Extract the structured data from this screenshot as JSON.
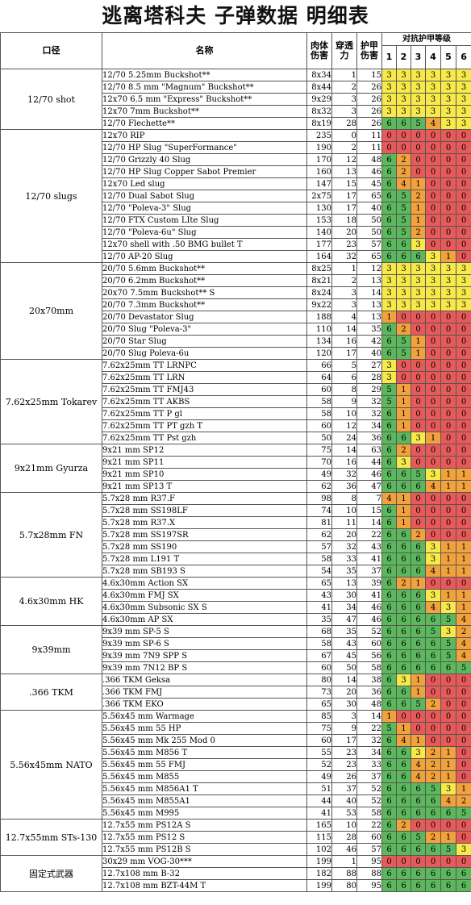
{
  "title": "逃离塔科夫 子弹数据 明细表",
  "headers": {
    "caliber": "口径",
    "name": "名称",
    "flesh": "肉体伤害",
    "pen": "穿透力",
    "armor": "护甲伤害",
    "vs_armor": "对抗护甲等级",
    "levels": [
      "1",
      "2",
      "3",
      "4",
      "5",
      "6"
    ]
  },
  "colors": {
    "g": "#5cb85c",
    "y": "#f7e94a",
    "o": "#f2a23c",
    "r": "#e85a5a"
  },
  "groups": [
    {
      "caliber": "12/70 shot",
      "rows": [
        {
          "name": "12/70 5.25mm Buckshot**",
          "dmg": "8x34",
          "pen": "1",
          "ad": "15",
          "a": [
            "3",
            "3",
            "3",
            "3",
            "3",
            "3"
          ]
        },
        {
          "name": "12/70 8.5 mm \"Magnum\" Buckshot**",
          "dmg": "8x44",
          "pen": "2",
          "ad": "26",
          "a": [
            "3",
            "3",
            "3",
            "3",
            "3",
            "3"
          ]
        },
        {
          "name": "12x70 6.5 mm \"Express\" Buckshot**",
          "dmg": "9x29",
          "pen": "3",
          "ad": "26",
          "a": [
            "3",
            "3",
            "3",
            "3",
            "3",
            "3"
          ]
        },
        {
          "name": "12x70 7mm Buckshot**",
          "dmg": "8x32",
          "pen": "3",
          "ad": "26",
          "a": [
            "3",
            "3",
            "3",
            "3",
            "3",
            "3"
          ]
        },
        {
          "name": "12/70 Flechette**",
          "dmg": "8x19",
          "pen": "28",
          "ad": "26",
          "a": [
            "6",
            "6",
            "5",
            "4",
            "3",
            "3"
          ]
        }
      ]
    },
    {
      "caliber": "12/70 slugs",
      "rows": [
        {
          "name": "12x70 RIP",
          "dmg": "235",
          "pen": "0",
          "ad": "11",
          "a": [
            "0",
            "0",
            "0",
            "0",
            "0",
            "0"
          ]
        },
        {
          "name": "12/70 HP Slug \"SuperFormance\"",
          "dmg": "190",
          "pen": "2",
          "ad": "11",
          "a": [
            "0",
            "0",
            "0",
            "0",
            "0",
            "0"
          ]
        },
        {
          "name": "12/70 Grizzly 40 Slug",
          "dmg": "170",
          "pen": "12",
          "ad": "48",
          "a": [
            "6",
            "2",
            "0",
            "0",
            "0",
            "0"
          ]
        },
        {
          "name": "12/70 HP Slug Copper Sabot Premier",
          "dmg": "160",
          "pen": "13",
          "ad": "46",
          "a": [
            "6",
            "2",
            "0",
            "0",
            "0",
            "0"
          ]
        },
        {
          "name": "12x70 Led slug",
          "dmg": "147",
          "pen": "15",
          "ad": "45",
          "a": [
            "6",
            "4",
            "1",
            "0",
            "0",
            "0"
          ]
        },
        {
          "name": "12/70 Dual Sabot Slug",
          "dmg": "2x75",
          "pen": "17",
          "ad": "65",
          "a": [
            "6",
            "5",
            "2",
            "0",
            "0",
            "0"
          ]
        },
        {
          "name": "12/70 \"Poleva-3\" Slug",
          "dmg": "130",
          "pen": "17",
          "ad": "40",
          "a": [
            "6",
            "5",
            "1",
            "0",
            "0",
            "0"
          ]
        },
        {
          "name": "12/70 FTX Custom LIte Slug",
          "dmg": "153",
          "pen": "18",
          "ad": "50",
          "a": [
            "6",
            "5",
            "1",
            "0",
            "0",
            "0"
          ]
        },
        {
          "name": "12/70 \"Poleva-6u\" Slug",
          "dmg": "140",
          "pen": "20",
          "ad": "50",
          "a": [
            "6",
            "5",
            "2",
            "0",
            "0",
            "0"
          ]
        },
        {
          "name": "12x70 shell with .50 BMG bullet T",
          "dmg": "177",
          "pen": "23",
          "ad": "57",
          "a": [
            "6",
            "6",
            "3",
            "0",
            "0",
            "0"
          ]
        },
        {
          "name": "12/70 AP-20 Slug",
          "dmg": "164",
          "pen": "32",
          "ad": "65",
          "a": [
            "6",
            "6",
            "6",
            "3",
            "1",
            "0"
          ]
        }
      ]
    },
    {
      "caliber": "20x70mm",
      "rows": [
        {
          "name": "20/70 5.6mm Buckshot**",
          "dmg": "8x25",
          "pen": "1",
          "ad": "12",
          "a": [
            "3",
            "3",
            "3",
            "3",
            "3",
            "3"
          ]
        },
        {
          "name": "20/70 6.2mm Buckshot**",
          "dmg": "8x21",
          "pen": "2",
          "ad": "13",
          "a": [
            "3",
            "3",
            "3",
            "3",
            "3",
            "3"
          ]
        },
        {
          "name": "20x70 7.5mm Buckshot** S",
          "dmg": "8x24",
          "pen": "3",
          "ad": "14",
          "a": [
            "3",
            "3",
            "3",
            "3",
            "3",
            "3"
          ]
        },
        {
          "name": "20/70 7.3mm Buckshot**",
          "dmg": "9x22",
          "pen": "3",
          "ad": "13",
          "a": [
            "3",
            "3",
            "3",
            "3",
            "3",
            "3"
          ]
        },
        {
          "name": "20/70 Devastator Slug",
          "dmg": "188",
          "pen": "4",
          "ad": "13",
          "a": [
            "1",
            "0",
            "0",
            "0",
            "0",
            "0"
          ]
        },
        {
          "name": "20/70 Slug \"Poleva-3\"",
          "dmg": "110",
          "pen": "14",
          "ad": "35",
          "a": [
            "6",
            "2",
            "0",
            "0",
            "0",
            "0"
          ]
        },
        {
          "name": "20/70 Star Slug",
          "dmg": "134",
          "pen": "16",
          "ad": "42",
          "a": [
            "6",
            "5",
            "1",
            "0",
            "0",
            "0"
          ]
        },
        {
          "name": "20/70 Slug Poleva-6u",
          "dmg": "120",
          "pen": "17",
          "ad": "40",
          "a": [
            "6",
            "5",
            "1",
            "0",
            "0",
            "0"
          ]
        }
      ]
    },
    {
      "caliber": "7.62x25mm Tokarev",
      "rows": [
        {
          "name": "7.62x25mm TT LRNPC",
          "dmg": "66",
          "pen": "5",
          "ad": "27",
          "a": [
            "3",
            "0",
            "0",
            "0",
            "0",
            "0"
          ]
        },
        {
          "name": "7.62x25mm TT LRN",
          "dmg": "64",
          "pen": "6",
          "ad": "28",
          "a": [
            "3",
            "0",
            "0",
            "0",
            "0",
            "0"
          ]
        },
        {
          "name": "7.62x25mm TT FMJ43",
          "dmg": "60",
          "pen": "8",
          "ad": "29",
          "a": [
            "5",
            "1",
            "0",
            "0",
            "0",
            "0"
          ]
        },
        {
          "name": "7.62x25mm TT AKBS",
          "dmg": "58",
          "pen": "9",
          "ad": "32",
          "a": [
            "5",
            "1",
            "0",
            "0",
            "0",
            "0"
          ]
        },
        {
          "name": "7.62x25mm TT P gl",
          "dmg": "58",
          "pen": "10",
          "ad": "32",
          "a": [
            "6",
            "1",
            "0",
            "0",
            "0",
            "0"
          ]
        },
        {
          "name": "7.62x25mm TT PT gzh T",
          "dmg": "60",
          "pen": "12",
          "ad": "34",
          "a": [
            "6",
            "1",
            "0",
            "0",
            "0",
            "0"
          ]
        },
        {
          "name": "7.62x25mm TT Pst gzh",
          "dmg": "50",
          "pen": "24",
          "ad": "36",
          "a": [
            "6",
            "6",
            "3",
            "1",
            "0",
            "0"
          ]
        }
      ]
    },
    {
      "caliber": "9x21mm Gyurza",
      "rows": [
        {
          "name": "9x21 mm SP12",
          "dmg": "75",
          "pen": "14",
          "ad": "63",
          "a": [
            "6",
            "2",
            "0",
            "0",
            "0",
            "0"
          ]
        },
        {
          "name": "9x21 mm SP11",
          "dmg": "70",
          "pen": "16",
          "ad": "44",
          "a": [
            "6",
            "3",
            "0",
            "0",
            "0",
            "0"
          ]
        },
        {
          "name": "9x21 mm SP10",
          "dmg": "49",
          "pen": "32",
          "ad": "46",
          "a": [
            "6",
            "6",
            "5",
            "3",
            "1",
            "1"
          ]
        },
        {
          "name": "9x21 mm SP13 T",
          "dmg": "62",
          "pen": "36",
          "ad": "47",
          "a": [
            "6",
            "6",
            "6",
            "4",
            "1",
            "1"
          ]
        }
      ]
    },
    {
      "caliber": "5.7x28mm FN",
      "rows": [
        {
          "name": "5.7x28 mm R37.F",
          "dmg": "98",
          "pen": "8",
          "ad": "7",
          "a": [
            "4",
            "1",
            "0",
            "0",
            "0",
            "0"
          ]
        },
        {
          "name": "5.7x28 mm SS198LF",
          "dmg": "74",
          "pen": "10",
          "ad": "15",
          "a": [
            "6",
            "1",
            "0",
            "0",
            "0",
            "0"
          ]
        },
        {
          "name": "5.7x28 mm R37.X",
          "dmg": "81",
          "pen": "11",
          "ad": "14",
          "a": [
            "6",
            "1",
            "0",
            "0",
            "0",
            "0"
          ]
        },
        {
          "name": "5.7x28 mm SS197SR",
          "dmg": "62",
          "pen": "20",
          "ad": "22",
          "a": [
            "6",
            "6",
            "2",
            "0",
            "0",
            "0"
          ]
        },
        {
          "name": "5.7x28 mm SS190",
          "dmg": "57",
          "pen": "32",
          "ad": "43",
          "a": [
            "6",
            "6",
            "6",
            "3",
            "1",
            "1"
          ]
        },
        {
          "name": "5.7x28 mm L191 T",
          "dmg": "58",
          "pen": "33",
          "ad": "41",
          "a": [
            "6",
            "6",
            "6",
            "3",
            "1",
            "1"
          ]
        },
        {
          "name": "5.7x28 mm SB193 S",
          "dmg": "54",
          "pen": "35",
          "ad": "37",
          "a": [
            "6",
            "6",
            "6",
            "4",
            "1",
            "1"
          ]
        }
      ]
    },
    {
      "caliber": "4.6x30mm HK",
      "rows": [
        {
          "name": "4.6x30mm Action SX",
          "dmg": "65",
          "pen": "13",
          "ad": "39",
          "a": [
            "6",
            "2",
            "1",
            "0",
            "0",
            "0"
          ]
        },
        {
          "name": "4.6x30mm FMJ SX",
          "dmg": "43",
          "pen": "30",
          "ad": "41",
          "a": [
            "6",
            "6",
            "6",
            "3",
            "1",
            "1"
          ]
        },
        {
          "name": "4.6x30mm Subsonic SX S",
          "dmg": "41",
          "pen": "34",
          "ad": "46",
          "a": [
            "6",
            "6",
            "6",
            "4",
            "3",
            "1"
          ]
        },
        {
          "name": "4.6x30mm AP SX",
          "dmg": "35",
          "pen": "47",
          "ad": "46",
          "a": [
            "6",
            "6",
            "6",
            "6",
            "5",
            "4"
          ]
        }
      ]
    },
    {
      "caliber": "9x39mm",
      "rows": [
        {
          "name": "9x39 mm SP-5 S",
          "dmg": "68",
          "pen": "35",
          "ad": "52",
          "a": [
            "6",
            "6",
            "6",
            "5",
            "3",
            "2"
          ]
        },
        {
          "name": "9x39 mm SP-6 S",
          "dmg": "58",
          "pen": "43",
          "ad": "60",
          "a": [
            "6",
            "6",
            "6",
            "6",
            "5",
            "4"
          ]
        },
        {
          "name": "9x39 mm 7N9 SPP S",
          "dmg": "67",
          "pen": "45",
          "ad": "56",
          "a": [
            "6",
            "6",
            "6",
            "6",
            "5",
            "4"
          ]
        },
        {
          "name": "9x39 mm 7N12 BP S",
          "dmg": "60",
          "pen": "50",
          "ad": "58",
          "a": [
            "6",
            "6",
            "6",
            "6",
            "6",
            "5"
          ]
        }
      ]
    },
    {
      "caliber": ".366 TKM",
      "rows": [
        {
          "name": ".366 TKM Geksa",
          "dmg": "80",
          "pen": "14",
          "ad": "38",
          "a": [
            "6",
            "3",
            "1",
            "0",
            "0",
            "0"
          ]
        },
        {
          "name": ".366 TKM FMJ",
          "dmg": "73",
          "pen": "20",
          "ad": "36",
          "a": [
            "6",
            "6",
            "1",
            "0",
            "0",
            "0"
          ]
        },
        {
          "name": ".366 TKM EKO",
          "dmg": "65",
          "pen": "30",
          "ad": "48",
          "a": [
            "6",
            "6",
            "5",
            "2",
            "0",
            "0"
          ]
        }
      ]
    },
    {
      "caliber": "5.56x45mm NATO",
      "rows": [
        {
          "name": "5.56x45 mm Warmage",
          "dmg": "85",
          "pen": "3",
          "ad": "14",
          "a": [
            "1",
            "0",
            "0",
            "0",
            "0",
            "0"
          ]
        },
        {
          "name": "5.56x45 mm 55 HP",
          "dmg": "75",
          "pen": "9",
          "ad": "22",
          "a": [
            "5",
            "1",
            "0",
            "0",
            "0",
            "0"
          ]
        },
        {
          "name": "5.56x45 mm Mk 255 Mod 0",
          "dmg": "60",
          "pen": "17",
          "ad": "32",
          "a": [
            "6",
            "4",
            "1",
            "0",
            "0",
            "0"
          ]
        },
        {
          "name": "5.56x45 mm M856 T",
          "dmg": "55",
          "pen": "23",
          "ad": "34",
          "a": [
            "6",
            "6",
            "3",
            "2",
            "1",
            "0"
          ]
        },
        {
          "name": "5.56x45 mm 55 FMJ",
          "dmg": "52",
          "pen": "23",
          "ad": "33",
          "a": [
            "6",
            "6",
            "4",
            "2",
            "1",
            "0"
          ]
        },
        {
          "name": "5.56x45 mm M855",
          "dmg": "49",
          "pen": "26",
          "ad": "37",
          "a": [
            "6",
            "6",
            "4",
            "2",
            "1",
            "0"
          ]
        },
        {
          "name": "5.56x45 mm M856A1 T",
          "dmg": "51",
          "pen": "37",
          "ad": "52",
          "a": [
            "6",
            "6",
            "6",
            "5",
            "3",
            "1"
          ]
        },
        {
          "name": "5.56x45 mm M855A1",
          "dmg": "44",
          "pen": "40",
          "ad": "52",
          "a": [
            "6",
            "6",
            "6",
            "6",
            "4",
            "2"
          ]
        },
        {
          "name": "5.56x45 mm M995",
          "dmg": "41",
          "pen": "53",
          "ad": "58",
          "a": [
            "6",
            "6",
            "6",
            "6",
            "6",
            "5"
          ]
        }
      ]
    },
    {
      "caliber": "12.7x55mm STs-130",
      "rows": [
        {
          "name": "12.7x55 mm PS12A S",
          "dmg": "165",
          "pen": "10",
          "ad": "22",
          "a": [
            "6",
            "2",
            "0",
            "0",
            "0",
            "0"
          ]
        },
        {
          "name": "12.7x55 mm PS12 S",
          "dmg": "115",
          "pen": "28",
          "ad": "60",
          "a": [
            "6",
            "6",
            "5",
            "2",
            "1",
            "0"
          ]
        },
        {
          "name": "12.7x55 mm PS12B S",
          "dmg": "102",
          "pen": "46",
          "ad": "57",
          "a": [
            "6",
            "6",
            "6",
            "6",
            "5",
            "3"
          ]
        }
      ]
    },
    {
      "caliber": "固定式武器",
      "rows": [
        {
          "name": "30x29 mm VOG-30***",
          "dmg": "199",
          "pen": "1",
          "ad": "95",
          "a": [
            "0",
            "0",
            "0",
            "0",
            "0",
            "0"
          ]
        },
        {
          "name": "12.7x108 mm B-32",
          "dmg": "182",
          "pen": "88",
          "ad": "88",
          "a": [
            "6",
            "6",
            "6",
            "6",
            "6",
            "6"
          ]
        },
        {
          "name": "12.7x108 mm BZT-44M T",
          "dmg": "199",
          "pen": "80",
          "ad": "95",
          "a": [
            "6",
            "6",
            "6",
            "6",
            "6",
            "6"
          ]
        }
      ]
    }
  ]
}
